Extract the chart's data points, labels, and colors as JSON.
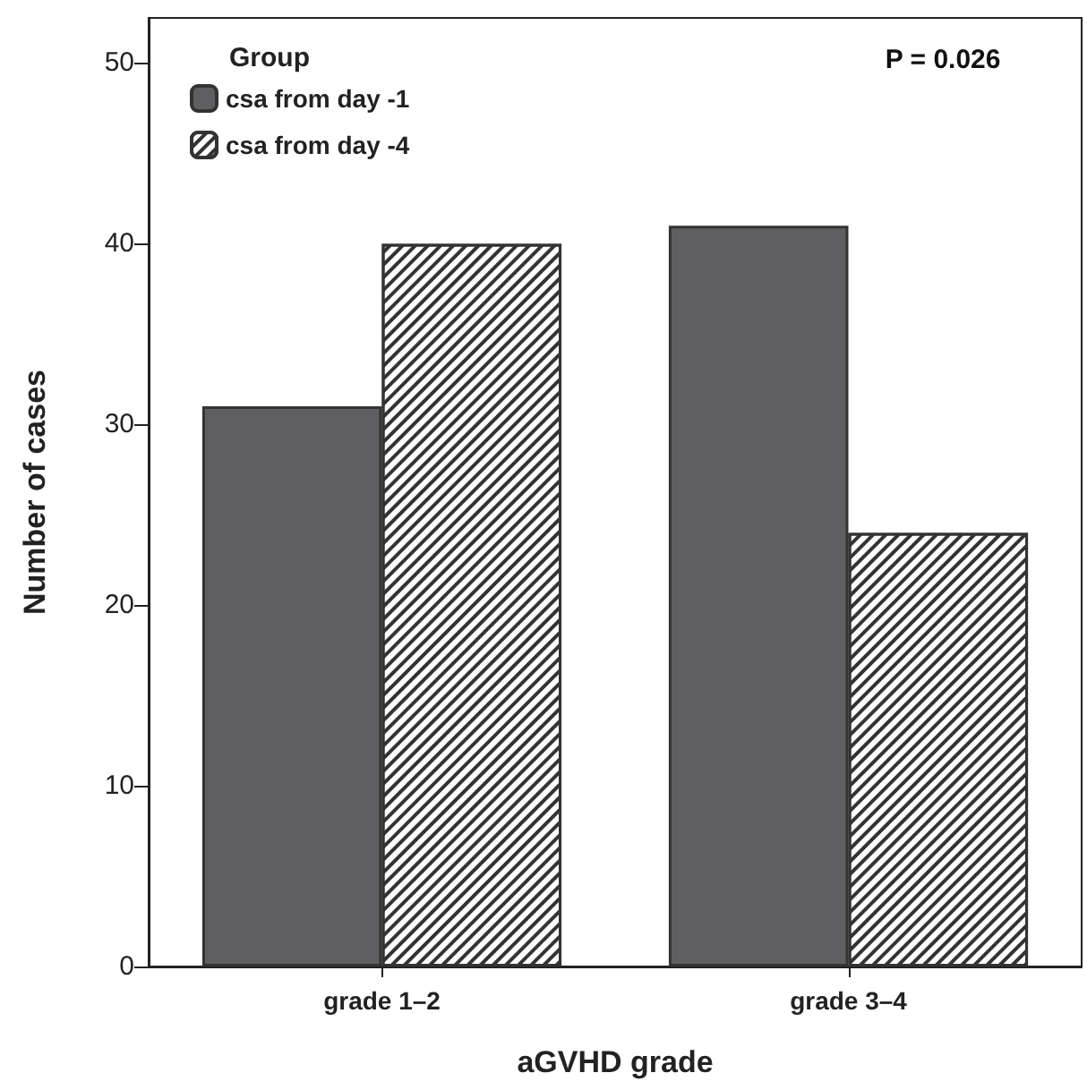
{
  "chart_data": {
    "type": "bar",
    "categories": [
      "grade 1–2",
      "grade 3–4"
    ],
    "series": [
      {
        "name": "csa from day -1",
        "color": "#5f5f61",
        "values": [
          31,
          41
        ]
      },
      {
        "name": "csa from day -4",
        "color": "#ffffff",
        "values": [
          40,
          24
        ]
      }
    ],
    "xlabel": "aGVHD grade",
    "ylabel": "Number of cases",
    "ylim": [
      0,
      52.5
    ],
    "yticks": [
      0,
      10,
      20,
      30,
      40,
      50
    ],
    "legend": "top left",
    "legend_title": "Group",
    "annotations": [
      "P = 0.026"
    ],
    "grid": false
  }
}
